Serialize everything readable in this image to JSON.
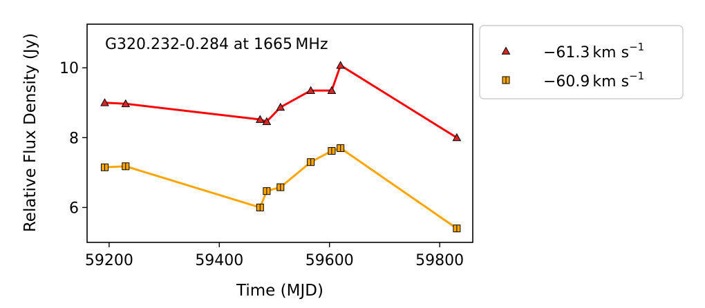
{
  "chart_data": {
    "type": "line",
    "title": "",
    "annotation": "G320.232-0.284 at 1665 MHz",
    "xlabel": "Time (MJD)",
    "ylabel": "Relative Flux Density (Jy)",
    "xlim": [
      59160,
      59860
    ],
    "ylim": [
      5.0,
      11.25
    ],
    "xticks": [
      59200,
      59400,
      59600,
      59800
    ],
    "yticks": [
      6,
      8,
      10
    ],
    "grid": false,
    "legend_position": "outside-right",
    "series": [
      {
        "name": "−61.3",
        "unit": "km s",
        "unit_exp": "−1",
        "color": "#ff0000",
        "marker": "triangle",
        "marker_color": "#d62728",
        "x": [
          59192,
          59230,
          59474,
          59486,
          59511,
          59566,
          59604,
          59620,
          59831
        ],
        "y": [
          9.0,
          8.97,
          8.52,
          8.46,
          8.87,
          9.35,
          9.35,
          10.07,
          8.0
        ]
      },
      {
        "name": "−60.9",
        "unit": "km s",
        "unit_exp": "−1",
        "color": "#ffa500",
        "marker": "square",
        "marker_color": "#ffa500",
        "x": [
          59192,
          59230,
          59474,
          59486,
          59511,
          59566,
          59604,
          59620,
          59831
        ],
        "y": [
          7.15,
          7.18,
          6.0,
          6.47,
          6.58,
          7.3,
          7.62,
          7.7,
          5.4
        ]
      }
    ]
  }
}
